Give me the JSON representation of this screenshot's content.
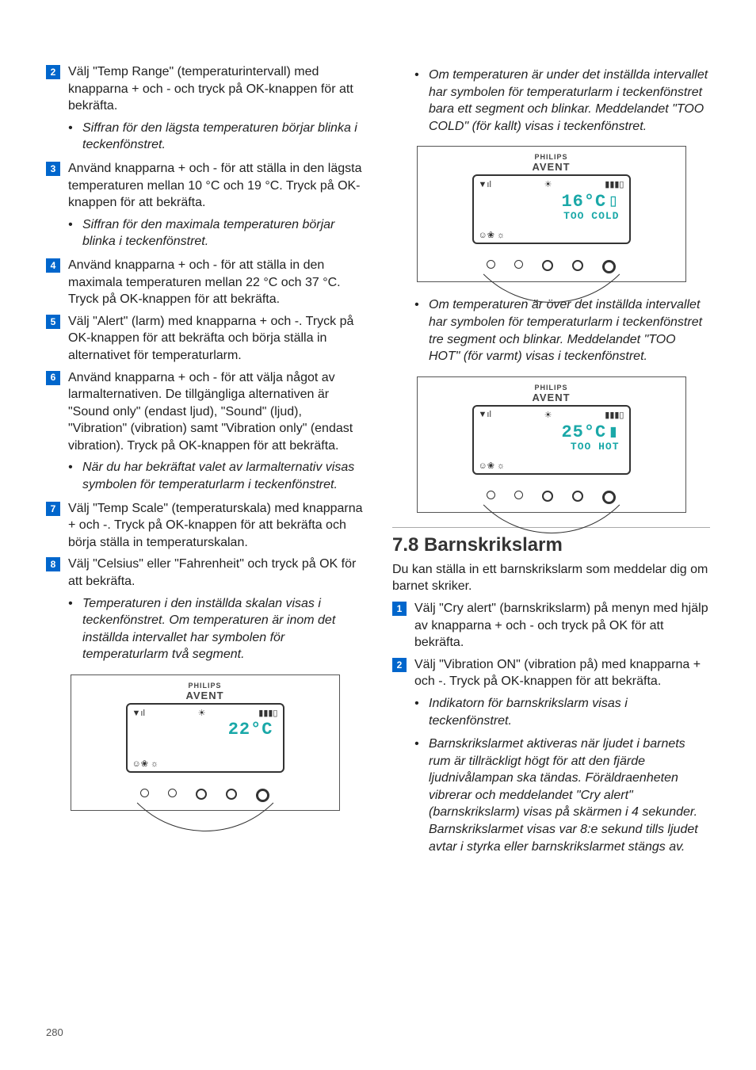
{
  "left": {
    "steps": [
      {
        "n": "2",
        "text": "Välj \"Temp Range\" (temperaturintervall) med knapparna + och - och tryck på OK-knappen för att bekräfta.",
        "subs": [
          "Siffran för den lägsta temperaturen börjar blinka i teckenfönstret."
        ]
      },
      {
        "n": "3",
        "text": "Använd knapparna + och - för att ställa in den lägsta temperaturen mellan 10 °C och 19 °C. Tryck på OK-knappen för att bekräfta.",
        "subs": [
          "Siffran för den maximala temperaturen börjar blinka i teckenfönstret."
        ]
      },
      {
        "n": "4",
        "text": "Använd knapparna + och - för att ställa in den maximala temperaturen mellan 22 °C och 37 °C. Tryck på OK-knappen för att bekräfta.",
        "subs": []
      },
      {
        "n": "5",
        "text": "Välj \"Alert\" (larm) med knapparna + och -. Tryck på OK-knappen för att bekräfta och börja ställa in alternativet för temperaturlarm.",
        "subs": []
      },
      {
        "n": "6",
        "text": "Använd knapparna + och - för att välja något av larmalternativen. De tillgängliga alternativen är \"Sound only\" (endast ljud), \"Sound\" (ljud), \"Vibration\" (vibration) samt \"Vibration only\" (endast vibration). Tryck på OK-knappen för att bekräfta.",
        "subs": [
          "När du har bekräftat valet av larmalternativ visas symbolen för temperaturlarm i teckenfönstret."
        ]
      },
      {
        "n": "7",
        "text": "Välj \"Temp Scale\" (temperaturskala) med knapparna + och -. Tryck på OK-knappen för att bekräfta och börja ställa in temperaturskalan.",
        "subs": []
      },
      {
        "n": "8",
        "text": "Välj \"Celsius\" eller \"Fahrenheit\" och tryck på OK för att bekräfta.",
        "subs": [
          "Temperaturen i den inställda skalan visas i teckenfönstret. Om temperaturen är inom det inställda intervallet har symbolen för temperaturlarm två segment."
        ]
      }
    ],
    "device1": {
      "temp": "22°C",
      "msg": ""
    }
  },
  "right": {
    "subs_top": [
      "Om temperaturen är under det inställda intervallet har symbolen för temperaturlarm i teckenfönstret bara ett segment och blinkar. Meddelandet \"TOO COLD\" (för kallt) visas i teckenfönstret."
    ],
    "device2": {
      "temp": "16°C",
      "msg": "TOO COLD"
    },
    "subs_mid": [
      "Om temperaturen är över det inställda intervallet har symbolen för temperaturlarm i teckenfönstret tre segment och blinkar. Meddelandet \"TOO HOT\" (för varmt) visas i teckenfönstret."
    ],
    "device3": {
      "temp": "25°C",
      "msg": "TOO HOT"
    },
    "heading": "7.8 Barnskrikslarm",
    "intro": "Du kan ställa in ett barnskrikslarm som meddelar dig om barnet skriker.",
    "steps": [
      {
        "n": "1",
        "text": "Välj \"Cry alert\" (barnskrikslarm) på menyn med hjälp av knapparna + och - och tryck på OK för att bekräfta.",
        "subs": []
      },
      {
        "n": "2",
        "text": "Välj \"Vibration ON\" (vibration på) med knapparna + och -. Tryck på OK-knappen för att bekräfta.",
        "subs": [
          "Indikatorn för barnskrikslarm visas i teckenfönstret.",
          "Barnskrikslarmet aktiveras när ljudet i barnets rum är tillräckligt högt för att den fjärde ljudnivålampan ska tändas. Föräldraenheten vibrerar och meddelandet \"Cry alert\" (barnskrikslarm) visas på skärmen i 4 sekunder. Barnskrikslarmet visas var 8:e sekund tills ljudet avtar i styrka eller barnskrikslarmet stängs av."
        ]
      }
    ]
  },
  "brand": {
    "l1": "PHILIPS",
    "l2": "AVENT"
  },
  "page_num": "280",
  "colors": {
    "accent": "#1aa8a8",
    "badge": "#0066cc"
  }
}
